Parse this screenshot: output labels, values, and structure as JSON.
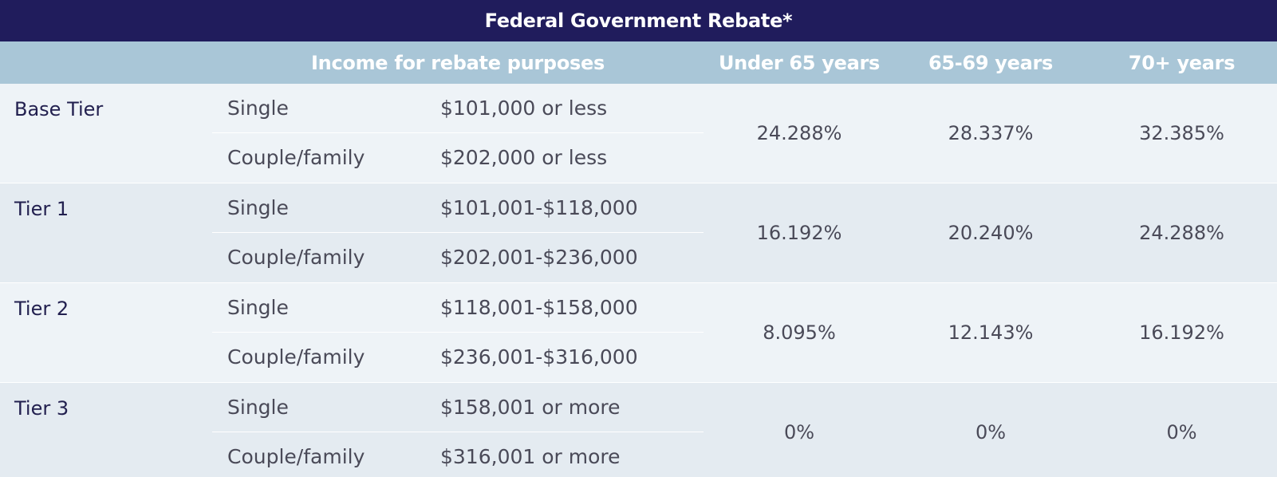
{
  "title": "Federal Government Rebate*",
  "headers": {
    "income": "Income for rebate purposes",
    "under65": "Under 65 years",
    "age65_69": "65-69 years",
    "age70": "70+ years"
  },
  "tiers": [
    {
      "name": "Base Tier",
      "rows": [
        {
          "household": "Single",
          "income": "$101,000 or less"
        },
        {
          "household": "Couple/family",
          "income": "$202,000 or less"
        }
      ],
      "rates": {
        "under65": "24.288%",
        "age65_69": "28.337%",
        "age70": "32.385%"
      }
    },
    {
      "name": "Tier 1",
      "rows": [
        {
          "household": "Single",
          "income": "$101,001-$118,000"
        },
        {
          "household": "Couple/family",
          "income": "$202,001-$236,000"
        }
      ],
      "rates": {
        "under65": "16.192%",
        "age65_69": "20.240%",
        "age70": "24.288%"
      }
    },
    {
      "name": "Tier 2",
      "rows": [
        {
          "household": "Single",
          "income": "$118,001-$158,000"
        },
        {
          "household": "Couple/family",
          "income": "$236,001-$316,000"
        }
      ],
      "rates": {
        "under65": "8.095%",
        "age65_69": "12.143%",
        "age70": "16.192%"
      }
    },
    {
      "name": "Tier 3",
      "rows": [
        {
          "household": "Single",
          "income": "$158,001 or more"
        },
        {
          "household": "Couple/family",
          "income": "$316,001 or more"
        }
      ],
      "rates": {
        "under65": "0%",
        "age65_69": "0%",
        "age70": "0%"
      }
    }
  ],
  "colors": {
    "title_bg": "#201c5c",
    "header_bg": "#a9c6d7",
    "row_light": "#eef3f7",
    "row_dark": "#e4ebf1"
  }
}
